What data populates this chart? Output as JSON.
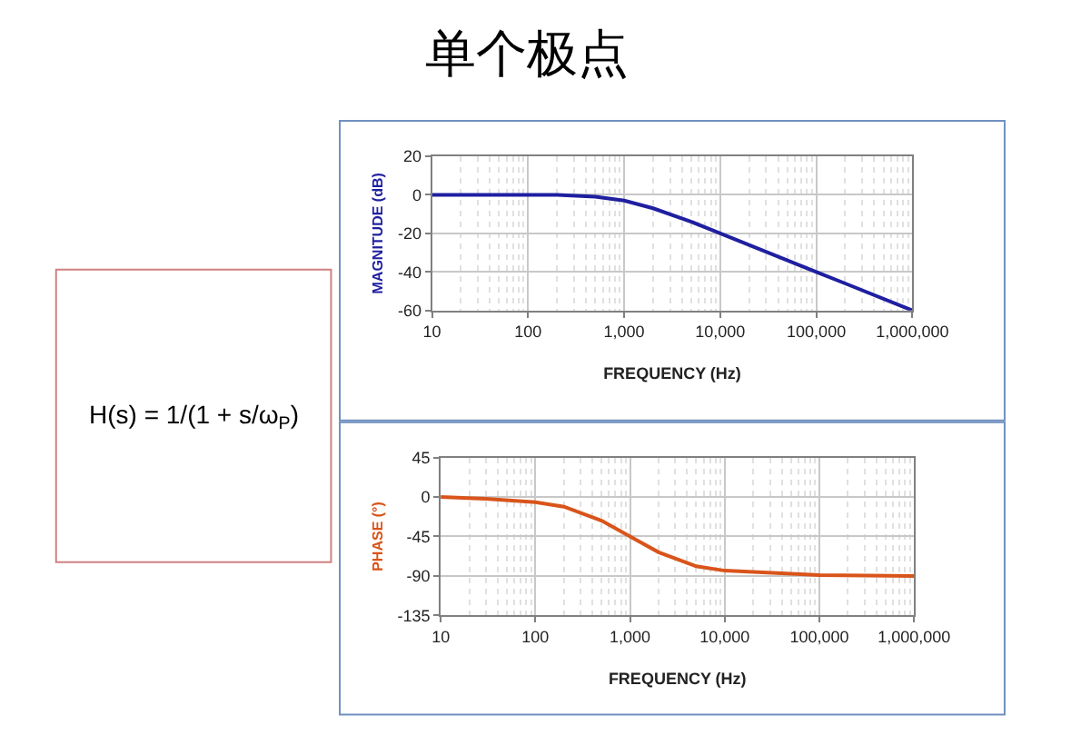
{
  "chart_data": [
    {
      "type": "line",
      "title": "单个极点",
      "annotations": [
        "H(s) = 1/(1 + s/ω$_{P}$)"
      ],
      "xlabel": "FREQUENCY (Hz)",
      "ylabel": "MAGNITUDE (dB)",
      "x": [
        10,
        100,
        200,
        500,
        1000,
        2000,
        5000,
        10000,
        100000,
        200000,
        1000000
      ],
      "series": [
        {
          "color": "#1f1fa0",
          "values": [
            0,
            0,
            0,
            -1,
            -3,
            -7,
            -14,
            -20,
            -40,
            -46,
            -60
          ]
        }
      ],
      "log": "x",
      "grid": true,
      "xlim": [
        10,
        1000000
      ],
      "xticks": [
        10,
        100,
        {
          "value": 1000,
          "label": "1,000"
        },
        {
          "value": 10000,
          "label": "10,000"
        },
        {
          "value": 100000,
          "label": "100,000"
        },
        {
          "value": 1000000,
          "label": "1,000,000"
        }
      ],
      "ylim": [
        -60,
        20
      ],
      "yticks": [
        -60,
        -40,
        -20,
        0,
        20
      ]
    },
    {
      "type": "line",
      "xlabel": "FREQUENCY (Hz)",
      "ylabel": "PHASE (°)",
      "x": [
        10,
        30,
        100,
        200,
        500,
        1000,
        2000,
        5000,
        10000,
        100000,
        1000000
      ],
      "series": [
        {
          "color": "#d9541a",
          "values": [
            0,
            -2,
            -6,
            -11,
            -27,
            -45,
            -63,
            -79,
            -84,
            -89,
            -90
          ]
        }
      ],
      "log": "x",
      "grid": true,
      "xlim": [
        10,
        1000000
      ],
      "xticks": [
        10,
        100,
        {
          "value": 1000,
          "label": "1,000"
        },
        {
          "value": 10000,
          "label": "10,000"
        },
        {
          "value": 100000,
          "label": "100,000"
        },
        {
          "value": 1000000,
          "label": "1,000,000"
        }
      ],
      "ylim": [
        -135,
        45
      ],
      "yticks": [
        -135,
        -90,
        -45,
        0,
        45
      ]
    }
  ]
}
